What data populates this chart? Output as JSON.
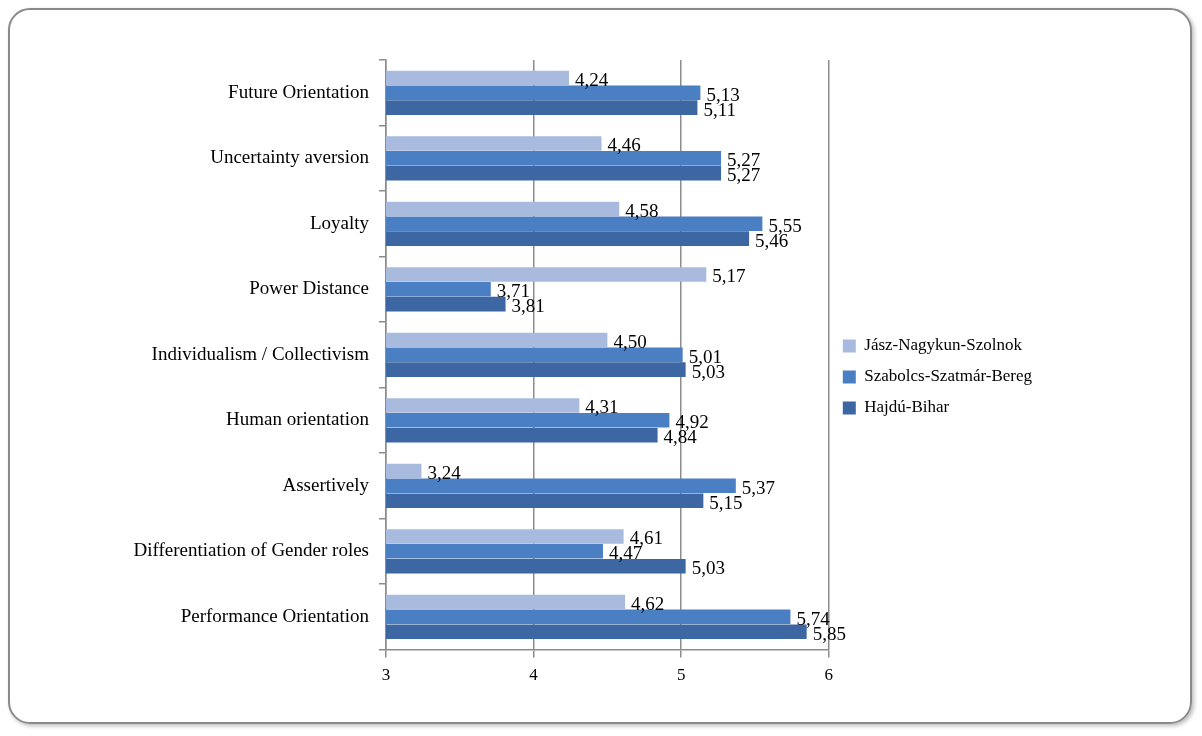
{
  "chart_data": {
    "type": "bar",
    "orientation": "horizontal",
    "categories": [
      "Future Orientation",
      "Uncertainty aversion",
      "Loyalty",
      "Power Distance",
      "Individualism / Collectivism",
      "Human orientation",
      "Assertively",
      "Differentiation of Gender roles",
      "Performance Orientation"
    ],
    "series": [
      {
        "name": "Jász-Nagykun-Szolnok",
        "color": "#a8bbde",
        "values": [
          4.24,
          4.46,
          4.58,
          5.17,
          4.5,
          4.31,
          3.24,
          4.61,
          4.62
        ],
        "value_labels": [
          "4,24",
          "4,46",
          "4,58",
          "5,17",
          "4,50",
          "4,31",
          "3,24",
          "4,61",
          "4,62"
        ]
      },
      {
        "name": "Szabolcs-Szatmár-Bereg",
        "color": "#4a7fc4",
        "values": [
          5.13,
          5.27,
          5.55,
          3.71,
          5.01,
          4.92,
          5.37,
          4.47,
          5.74
        ],
        "value_labels": [
          "5,13",
          "5,27",
          "5,55",
          "3,71",
          "5,01",
          "4,92",
          "5,37",
          "4,47",
          "5,74"
        ]
      },
      {
        "name": "Hajdú-Bihar",
        "color": "#3d67a3",
        "values": [
          5.11,
          5.27,
          5.46,
          3.81,
          5.03,
          4.84,
          5.15,
          5.03,
          5.85
        ],
        "value_labels": [
          "5,11",
          "5,27",
          "5,46",
          "3,81",
          "5,03",
          "4,84",
          "5,15",
          "5,03",
          "5,85"
        ]
      }
    ],
    "xlim": [
      3,
      6
    ],
    "xticks": [
      3,
      4,
      5,
      6
    ],
    "grid": "x",
    "legend": "right"
  }
}
